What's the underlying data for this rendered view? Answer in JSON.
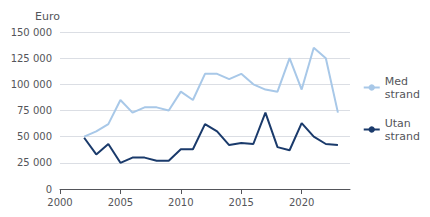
{
  "chart_data": {
    "type": "line",
    "ylabel": "Euro",
    "x": [
      2002,
      2003,
      2004,
      2005,
      2006,
      2007,
      2008,
      2009,
      2010,
      2011,
      2012,
      2013,
      2014,
      2015,
      2016,
      2017,
      2018,
      2019,
      2020,
      2021,
      2022,
      2023
    ],
    "series": [
      {
        "name": "Med\nstrand",
        "color": "#a8c8e8",
        "values": [
          50000,
          55000,
          62000,
          85000,
          73000,
          78000,
          78000,
          75000,
          93000,
          85000,
          110000,
          110000,
          105000,
          110000,
          100000,
          95000,
          93000,
          125000,
          95000,
          135000,
          125000,
          73000
        ]
      },
      {
        "name": "Utan\nstrand",
        "color": "#1a3a6b",
        "values": [
          49000,
          33000,
          43000,
          25000,
          30000,
          30000,
          27000,
          27000,
          38000,
          38000,
          62000,
          55000,
          42000,
          44000,
          43000,
          73000,
          40000,
          37000,
          63000,
          50000,
          43000,
          42000
        ]
      }
    ],
    "xlim": [
      2000,
      2024
    ],
    "xticks": [
      2000,
      2005,
      2010,
      2015,
      2020
    ],
    "ylim": [
      0,
      150000
    ],
    "yticks": [
      0,
      {
        "value": 25000,
        "label": "25 000"
      },
      {
        "value": 50000,
        "label": "50 000"
      },
      {
        "value": 75000,
        "label": "75 000"
      },
      {
        "value": 100000,
        "label": "100 000"
      },
      {
        "value": 125000,
        "label": "125 000"
      },
      {
        "value": 150000,
        "label": "150 000"
      }
    ],
    "grid": true,
    "legend": "right"
  }
}
